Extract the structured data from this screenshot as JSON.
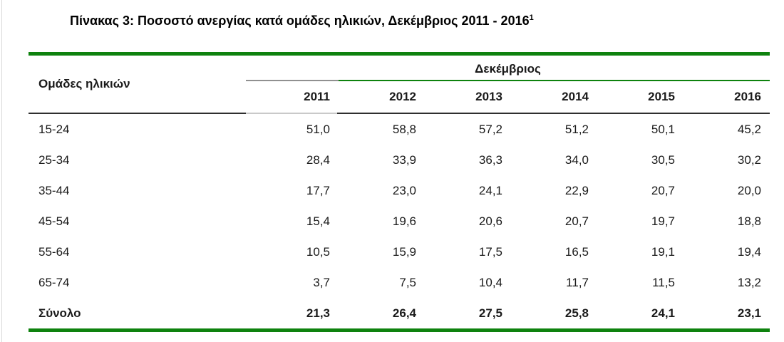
{
  "title": {
    "text": "Πίνακας 3: Ποσοστό ανεργίας κατά ομάδες ηλικιών, Δεκέμβριος 2011 - 2016",
    "footnote_marker": "1"
  },
  "table": {
    "row_header_label": "Ομάδες ηλικιών",
    "column_group_label": "Δεκέμβριος",
    "year_columns": [
      "2011",
      "2012",
      "2013",
      "2014",
      "2015",
      "2016"
    ],
    "rows": [
      {
        "label": "15-24",
        "values": [
          "51,0",
          "58,8",
          "57,2",
          "51,2",
          "50,1",
          "45,2"
        ]
      },
      {
        "label": "25-34",
        "values": [
          "28,4",
          "33,9",
          "36,3",
          "34,0",
          "30,5",
          "30,2"
        ]
      },
      {
        "label": "35-44",
        "values": [
          "17,7",
          "23,0",
          "24,1",
          "22,9",
          "20,7",
          "20,0"
        ]
      },
      {
        "label": "45-54",
        "values": [
          "15,4",
          "19,6",
          "20,6",
          "20,7",
          "19,7",
          "18,8"
        ]
      },
      {
        "label": "55-64",
        "values": [
          "10,5",
          "15,9",
          "17,5",
          "16,5",
          "19,1",
          "19,4"
        ]
      },
      {
        "label": "65-74",
        "values": [
          "3,7",
          "7,5",
          "10,4",
          "11,7",
          "11,5",
          "13,2"
        ]
      }
    ],
    "total_row": {
      "label": "Σύνολο",
      "values": [
        "21,3",
        "26,4",
        "27,5",
        "25,8",
        "24,1",
        "23,1"
      ]
    },
    "colors": {
      "accent_green": "#0e820e",
      "rule_dark": "#2f2f2f",
      "rule_gray": "#909090",
      "rule_light_gray": "#c9c9c9",
      "text": "#1a1a1a"
    }
  }
}
